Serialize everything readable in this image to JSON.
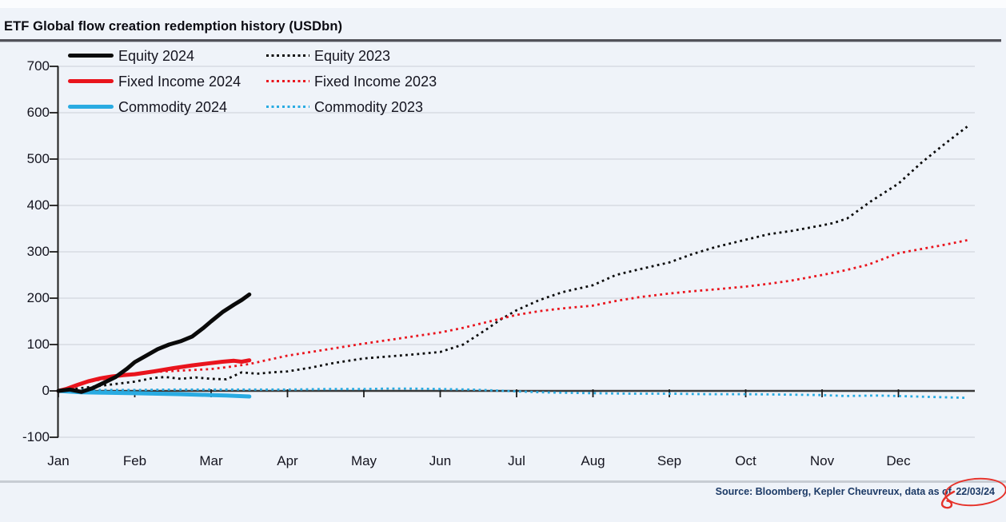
{
  "page": {
    "title": "ETF Global flow creation redemption history (USDbn)",
    "source_prefix": "Source: Bloomberg, Kepler Cheuvreux, data as of ",
    "source_date": "22/03/24"
  },
  "colors": {
    "equity": "#0a0a0a",
    "fixed_income": "#e9141d",
    "commodity": "#29abe2",
    "grid": "#d7dbe2",
    "zero_line": "#383838",
    "axis": "#1c1c1c",
    "tick_text": "#14141f",
    "source_text": "#1c3a66",
    "annotation": "#e6322a",
    "background": "#eff3f9"
  },
  "chart_data": {
    "type": "line",
    "title": "ETF Global flow creation redemption history (USDbn)",
    "unit": "USDbn (cumulative year-to-date flows)",
    "x_labels": [
      "Jan",
      "Feb",
      "Mar",
      "Apr",
      "May",
      "Jun",
      "Jul",
      "Aug",
      "Sep",
      "Oct",
      "Nov",
      "Dec"
    ],
    "x_unit": "month_fraction_0based (0 = Jan 1, 12 = Dec 31)",
    "y_ticks": [
      700,
      600,
      500,
      400,
      300,
      200,
      100,
      0,
      -100
    ],
    "ylim": [
      -100,
      700
    ],
    "grid": true,
    "legend_position": "top-left, two columns",
    "legend_columns": [
      [
        0,
        1,
        2
      ],
      [
        3,
        4,
        5
      ]
    ],
    "series": [
      {
        "name": "Equity 2024",
        "color": "#0a0a0a",
        "style": "solid",
        "monthly_cumulative": {
          "Jan": 0,
          "Feb": 62,
          "Mar": 150,
          "end_22_Mar": 208
        },
        "points": [
          [
            0,
            0
          ],
          [
            0.15,
            3
          ],
          [
            0.3,
            -2
          ],
          [
            0.45,
            6
          ],
          [
            0.6,
            18
          ],
          [
            0.75,
            30
          ],
          [
            0.9,
            48
          ],
          [
            1.0,
            62
          ],
          [
            1.15,
            76
          ],
          [
            1.3,
            90
          ],
          [
            1.45,
            100
          ],
          [
            1.6,
            107
          ],
          [
            1.75,
            117
          ],
          [
            1.9,
            136
          ],
          [
            2.0,
            150
          ],
          [
            2.15,
            170
          ],
          [
            2.3,
            186
          ],
          [
            2.4,
            196
          ],
          [
            2.5,
            208
          ]
        ]
      },
      {
        "name": "Fixed Income 2024",
        "color": "#e9141d",
        "style": "solid",
        "monthly_cumulative": {
          "Jan": 0,
          "Feb": 36,
          "Mar": 60,
          "end_22_Mar": 66
        },
        "points": [
          [
            0,
            0
          ],
          [
            0.1,
            4
          ],
          [
            0.25,
            13
          ],
          [
            0.4,
            21
          ],
          [
            0.55,
            27
          ],
          [
            0.7,
            31
          ],
          [
            0.85,
            34
          ],
          [
            1.0,
            36
          ],
          [
            1.25,
            42
          ],
          [
            1.5,
            49
          ],
          [
            1.75,
            55
          ],
          [
            2.0,
            60
          ],
          [
            2.15,
            63
          ],
          [
            2.3,
            65
          ],
          [
            2.4,
            63
          ],
          [
            2.5,
            66
          ]
        ]
      },
      {
        "name": "Commodity 2024",
        "color": "#29abe2",
        "style": "solid",
        "monthly_cumulative": {
          "Jan": 0,
          "Feb": -5,
          "Mar": -9,
          "end_22_Mar": -12
        },
        "points": [
          [
            0,
            0
          ],
          [
            0.3,
            -3
          ],
          [
            0.6,
            -4
          ],
          [
            1.0,
            -5
          ],
          [
            1.3,
            -6
          ],
          [
            1.6,
            -7
          ],
          [
            2.0,
            -9
          ],
          [
            2.2,
            -10
          ],
          [
            2.5,
            -12
          ]
        ]
      },
      {
        "name": "Equity 2023",
        "color": "#0a0a0a",
        "style": "dotted",
        "monthly_cumulative": {
          "Jan": 0,
          "Feb": 20,
          "Mar": 26,
          "Apr": 42,
          "May": 70,
          "Jun": 84,
          "Jul": 174,
          "Aug": 228,
          "Sep": 277,
          "Oct": 326,
          "Nov": 357,
          "Dec": 447,
          "year_end": 570
        },
        "points": [
          [
            0,
            0
          ],
          [
            0.25,
            5
          ],
          [
            0.5,
            10
          ],
          [
            0.75,
            15
          ],
          [
            1.0,
            20
          ],
          [
            1.25,
            28
          ],
          [
            1.4,
            30
          ],
          [
            1.6,
            26
          ],
          [
            1.8,
            29
          ],
          [
            2.0,
            26
          ],
          [
            2.2,
            25
          ],
          [
            2.4,
            40
          ],
          [
            2.6,
            37
          ],
          [
            2.8,
            40
          ],
          [
            3.0,
            42
          ],
          [
            3.3,
            50
          ],
          [
            3.6,
            60
          ],
          [
            4.0,
            70
          ],
          [
            4.3,
            74
          ],
          [
            4.6,
            78
          ],
          [
            5.0,
            84
          ],
          [
            5.3,
            100
          ],
          [
            5.6,
            132
          ],
          [
            5.8,
            155
          ],
          [
            6.0,
            174
          ],
          [
            6.3,
            196
          ],
          [
            6.6,
            213
          ],
          [
            7.0,
            228
          ],
          [
            7.3,
            250
          ],
          [
            7.6,
            262
          ],
          [
            8.0,
            277
          ],
          [
            8.3,
            295
          ],
          [
            8.6,
            310
          ],
          [
            9.0,
            326
          ],
          [
            9.3,
            338
          ],
          [
            9.6,
            345
          ],
          [
            10.0,
            357
          ],
          [
            10.15,
            362
          ],
          [
            10.33,
            372
          ],
          [
            10.64,
            409
          ],
          [
            11.0,
            447
          ],
          [
            11.3,
            492
          ],
          [
            11.6,
            532
          ],
          [
            11.9,
            570
          ]
        ]
      },
      {
        "name": "Fixed Income 2023",
        "color": "#e9141d",
        "style": "dotted",
        "monthly_cumulative": {
          "Jan": 0,
          "Feb": 37,
          "Mar": 47,
          "Apr": 76,
          "May": 102,
          "Jun": 126,
          "Jul": 164,
          "Aug": 184,
          "Sep": 210,
          "Oct": 225,
          "Nov": 250,
          "Dec": 297,
          "year_end": 325
        },
        "points": [
          [
            0,
            0
          ],
          [
            0.15,
            8
          ],
          [
            0.3,
            16
          ],
          [
            0.5,
            23
          ],
          [
            0.75,
            30
          ],
          [
            1.0,
            37
          ],
          [
            1.25,
            41
          ],
          [
            1.5,
            43
          ],
          [
            1.75,
            45
          ],
          [
            2.0,
            47
          ],
          [
            2.25,
            52
          ],
          [
            2.5,
            58
          ],
          [
            2.75,
            67
          ],
          [
            3.0,
            76
          ],
          [
            3.5,
            89
          ],
          [
            4.0,
            102
          ],
          [
            4.5,
            114
          ],
          [
            5.0,
            126
          ],
          [
            5.3,
            136
          ],
          [
            5.6,
            148
          ],
          [
            5.8,
            156
          ],
          [
            6.0,
            164
          ],
          [
            6.3,
            172
          ],
          [
            6.6,
            178
          ],
          [
            7.0,
            184
          ],
          [
            7.3,
            194
          ],
          [
            7.6,
            202
          ],
          [
            8.0,
            210
          ],
          [
            8.3,
            215
          ],
          [
            8.6,
            219
          ],
          [
            9.0,
            225
          ],
          [
            9.3,
            231
          ],
          [
            9.6,
            238
          ],
          [
            10.0,
            250
          ],
          [
            10.3,
            260
          ],
          [
            10.6,
            272
          ],
          [
            11.0,
            297
          ],
          [
            11.3,
            306
          ],
          [
            11.6,
            315
          ],
          [
            11.9,
            325
          ]
        ]
      },
      {
        "name": "Commodity 2023",
        "color": "#29abe2",
        "style": "dotted",
        "monthly_cumulative": {
          "Jan": 0,
          "Feb": 2,
          "Mar": 3,
          "Apr": 3,
          "May": 4,
          "Jun": 4,
          "Jul": -1,
          "Aug": -5,
          "Sep": -6,
          "Oct": -7,
          "Nov": -9,
          "Dec": -11,
          "year_end": -15
        },
        "points": [
          [
            0,
            0
          ],
          [
            0.3,
            2
          ],
          [
            0.6,
            2
          ],
          [
            1.0,
            2
          ],
          [
            1.5,
            3
          ],
          [
            2.0,
            3
          ],
          [
            2.5,
            3
          ],
          [
            3.0,
            3
          ],
          [
            3.5,
            4
          ],
          [
            4.0,
            4
          ],
          [
            4.3,
            5
          ],
          [
            4.6,
            5
          ],
          [
            5.0,
            4
          ],
          [
            5.4,
            3
          ],
          [
            5.7,
            1
          ],
          [
            6.0,
            -1
          ],
          [
            6.3,
            -3
          ],
          [
            6.6,
            -4
          ],
          [
            7.0,
            -5
          ],
          [
            7.5,
            -6
          ],
          [
            8.0,
            -6
          ],
          [
            8.5,
            -7
          ],
          [
            9.0,
            -7
          ],
          [
            9.5,
            -8
          ],
          [
            10.0,
            -9
          ],
          [
            10.3,
            -11
          ],
          [
            10.7,
            -10
          ],
          [
            11.0,
            -11
          ],
          [
            11.4,
            -13
          ],
          [
            11.9,
            -15
          ]
        ]
      }
    ]
  }
}
